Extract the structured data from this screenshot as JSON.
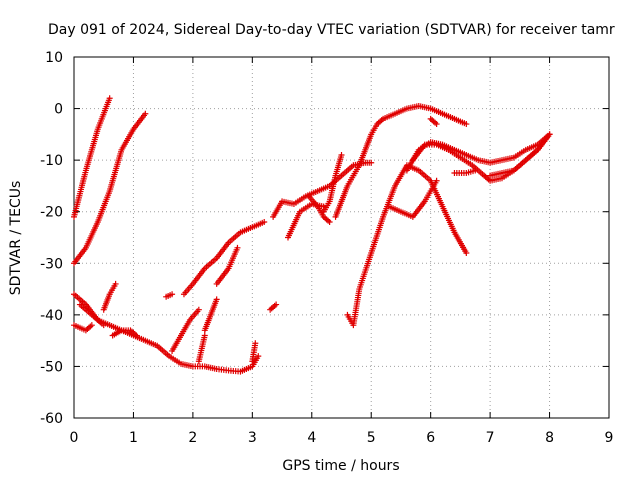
{
  "chart_data": {
    "type": "scatter",
    "title": "Day 091 of 2024, Sidereal Day-to-day VTEC variation (SDTVAR) for receiver tamr",
    "xlabel": "GPS time / hours",
    "ylabel": "SDTVAR / TECUs",
    "xlim": [
      0,
      9
    ],
    "ylim": [
      -60,
      10
    ],
    "xticks": [
      0,
      1,
      2,
      3,
      4,
      5,
      6,
      7,
      8,
      9
    ],
    "yticks": [
      -60,
      -50,
      -40,
      -30,
      -20,
      -10,
      0,
      10
    ],
    "grid": true,
    "marker": "+",
    "color": "#e00000",
    "tracks": [
      {
        "x": [
          0.0,
          0.2,
          0.4,
          0.6
        ],
        "y": [
          -21,
          -12,
          -4,
          2
        ]
      },
      {
        "x": [
          0.0,
          0.2,
          0.4,
          0.6,
          0.8,
          1.0,
          1.2
        ],
        "y": [
          -30,
          -27,
          -22,
          -16,
          -8,
          -4,
          -1
        ]
      },
      {
        "x": [
          0.0,
          0.2,
          0.4,
          0.6,
          0.8,
          1.0,
          1.2,
          1.4,
          1.6,
          1.8,
          2.0,
          2.2,
          2.4,
          2.6,
          2.8,
          3.0,
          3.1
        ],
        "y": [
          -36,
          -38,
          -41,
          -42,
          -43,
          -44,
          -45,
          -46,
          -48,
          -49.5,
          -50,
          -50,
          -50.5,
          -50.8,
          -51,
          -50,
          -48
        ]
      },
      {
        "x": [
          0.0,
          0.2,
          0.3
        ],
        "y": [
          -42,
          -43,
          -42
        ]
      },
      {
        "x": [
          0.1,
          0.3,
          0.5
        ],
        "y": [
          -38,
          -40,
          -42
        ]
      },
      {
        "x": [
          0.5,
          0.6,
          0.7
        ],
        "y": [
          -39,
          -36,
          -34
        ]
      },
      {
        "x": [
          0.65,
          0.8,
          0.95,
          1.05
        ],
        "y": [
          -44,
          -43,
          -43,
          -44
        ]
      },
      {
        "x": [
          1.55,
          1.65
        ],
        "y": [
          -36.5,
          -36
        ]
      },
      {
        "x": [
          1.65,
          1.8,
          1.95,
          2.1
        ],
        "y": [
          -47,
          -44,
          -41,
          -39
        ]
      },
      {
        "x": [
          2.1,
          2.2
        ],
        "y": [
          -49,
          -44
        ]
      },
      {
        "x": [
          2.2,
          2.3,
          2.4
        ],
        "y": [
          -43,
          -40,
          -37
        ]
      },
      {
        "x": [
          1.85,
          2.0,
          2.2,
          2.4,
          2.6,
          2.8,
          3.0,
          3.2
        ],
        "y": [
          -36,
          -34,
          -31,
          -29,
          -26,
          -24,
          -23,
          -22
        ]
      },
      {
        "x": [
          2.4,
          2.6,
          2.75
        ],
        "y": [
          -34,
          -31,
          -27
        ]
      },
      {
        "x": [
          3.0,
          3.05
        ],
        "y": [
          -49,
          -45.5
        ]
      },
      {
        "x": [
          3.3,
          3.4
        ],
        "y": [
          -39,
          -38
        ]
      },
      {
        "x": [
          3.35,
          3.5,
          3.7,
          3.9,
          4.1,
          4.3,
          4.5,
          4.7,
          4.9,
          5.0
        ],
        "y": [
          -21,
          -18,
          -18.5,
          -17,
          -16,
          -15,
          -13,
          -11,
          -10.5,
          -10.5
        ]
      },
      {
        "x": [
          3.6,
          3.8,
          4.0,
          4.2
        ],
        "y": [
          -25,
          -20,
          -18.5,
          -19
        ]
      },
      {
        "x": [
          3.95,
          4.1,
          4.2,
          4.3
        ],
        "y": [
          -17,
          -19,
          -21,
          -22
        ]
      },
      {
        "x": [
          4.2,
          4.3,
          4.4,
          4.5
        ],
        "y": [
          -20,
          -18,
          -13,
          -9
        ]
      },
      {
        "x": [
          4.4,
          4.5,
          4.6,
          4.7,
          4.8,
          4.9,
          5.0,
          5.1,
          5.2,
          5.3,
          5.4,
          5.6,
          5.8,
          6.0,
          6.2,
          6.4,
          6.6
        ],
        "y": [
          -21,
          -18,
          -15,
          -13,
          -11,
          -8,
          -5,
          -3,
          -2,
          -1.5,
          -1,
          0,
          0.5,
          0,
          -1,
          -2,
          -3
        ]
      },
      {
        "x": [
          6.0,
          6.1
        ],
        "y": [
          -2,
          -3
        ]
      },
      {
        "x": [
          4.6,
          4.7,
          4.8,
          5.0,
          5.2,
          5.4,
          5.6,
          5.8,
          6.0,
          6.2,
          6.4,
          6.6
        ],
        "y": [
          -40,
          -42,
          -35,
          -28,
          -21,
          -15,
          -11,
          -12,
          -14,
          -19,
          -24,
          -28
        ]
      },
      {
        "x": [
          5.3,
          5.5,
          5.7,
          5.9,
          6.0,
          6.1
        ],
        "y": [
          -19,
          -20,
          -21,
          -18,
          -16,
          -14
        ]
      },
      {
        "x": [
          5.6,
          5.8,
          6.0,
          6.2,
          6.4,
          6.6,
          6.8,
          7.0,
          7.2,
          7.4,
          7.6,
          7.8,
          8.0
        ],
        "y": [
          -12,
          -8,
          -6.5,
          -7,
          -8,
          -9,
          -10,
          -10.5,
          -10,
          -9.5,
          -8,
          -7,
          -5
        ]
      },
      {
        "x": [
          5.7,
          5.9,
          6.1,
          6.3,
          6.5,
          6.7,
          6.9,
          7.0,
          7.2,
          7.4,
          7.6,
          7.8,
          8.0
        ],
        "y": [
          -10,
          -7,
          -7,
          -8,
          -9.5,
          -11,
          -13,
          -14,
          -13.5,
          -12,
          -10,
          -8,
          -5
        ]
      },
      {
        "x": [
          6.4,
          6.6,
          6.75
        ],
        "y": [
          -12.5,
          -12.5,
          -12
        ]
      },
      {
        "x": [
          7.0,
          7.2,
          7.4,
          7.6,
          7.8,
          8.0
        ],
        "y": [
          -13,
          -12.5,
          -12,
          -10,
          -8,
          -5
        ]
      }
    ]
  }
}
